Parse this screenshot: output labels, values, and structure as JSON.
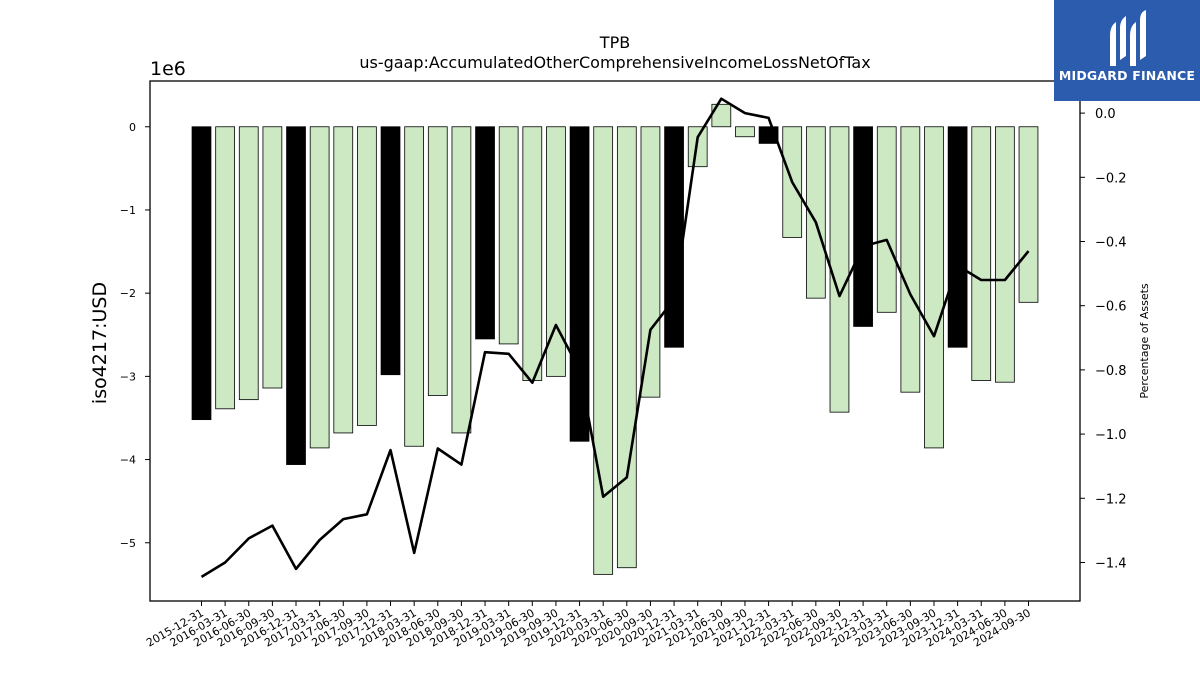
{
  "chart_data": {
    "type": "bar",
    "title": "TPB",
    "subtitle": "us-gaap:AccumulatedOtherComprehensiveIncomeLossNetOfTax",
    "ylabel": "iso4217:USD",
    "y2label": "Percentage of Assets",
    "y_offset_label": "1e6",
    "ylim": [
      -5.7,
      0.55
    ],
    "y2lim": [
      -1.52,
      0.1
    ],
    "yticks": [
      0,
      -1,
      -2,
      -3,
      -4,
      -5
    ],
    "y2ticks": [
      0.0,
      -0.2,
      -0.4,
      -0.6,
      -0.8,
      -1.0,
      -1.2,
      -1.4
    ],
    "y2tick_labels": [
      "0.0",
      "−0.2",
      "−0.4",
      "−0.6",
      "−0.8",
      "−1.0",
      "−1.2",
      "−1.4"
    ],
    "categories": [
      "2015-12-31",
      "2016-03-31",
      "2016-06-30",
      "2016-09-30",
      "2016-12-31",
      "2017-03-31",
      "2017-06-30",
      "2017-09-30",
      "2017-12-31",
      "2018-03-31",
      "2018-06-30",
      "2018-09-30",
      "2018-12-31",
      "2019-03-31",
      "2019-06-30",
      "2019-09-30",
      "2019-12-31",
      "2020-03-31",
      "2020-06-30",
      "2020-09-30",
      "2020-12-31",
      "2021-03-31",
      "2021-06-30",
      "2021-09-30",
      "2021-12-31",
      "2022-03-31",
      "2022-06-30",
      "2022-09-30",
      "2022-12-31",
      "2023-03-31",
      "2023-06-30",
      "2023-09-30",
      "2023-12-31",
      "2024-03-31",
      "2024-06-30",
      "2024-09-30"
    ],
    "series": [
      {
        "kind": "bar",
        "values": [
          -3.52,
          -3.39,
          -3.28,
          -3.14,
          -4.06,
          -3.86,
          -3.68,
          -3.59,
          -2.98,
          -3.84,
          -3.23,
          -3.68,
          -2.55,
          -2.61,
          -3.05,
          -3.0,
          -3.78,
          -5.38,
          -5.3,
          -3.25,
          -2.65,
          -0.48,
          0.27,
          -0.12,
          -0.2,
          -1.33,
          -2.06,
          -3.43,
          -2.4,
          -2.23,
          -3.19,
          -3.86,
          -2.65,
          -3.05,
          -3.07,
          -2.11
        ],
        "annual_color": "#000000",
        "quarterly_color": "#cce9c4",
        "annual_flags": [
          1,
          0,
          0,
          0,
          1,
          0,
          0,
          0,
          1,
          0,
          0,
          0,
          1,
          0,
          0,
          0,
          1,
          0,
          0,
          0,
          1,
          0,
          0,
          0,
          1,
          0,
          0,
          0,
          1,
          0,
          0,
          0,
          1,
          0,
          0,
          0
        ]
      },
      {
        "kind": "line",
        "color": "#000000",
        "axis": "right",
        "values": [
          -1.445,
          -1.4,
          -1.325,
          -1.285,
          -1.42,
          -1.33,
          -1.265,
          -1.25,
          -1.05,
          -1.37,
          -1.045,
          -1.095,
          -0.745,
          -0.75,
          -0.84,
          -0.66,
          -0.8,
          -1.195,
          -1.135,
          -0.675,
          -0.58,
          -0.075,
          0.045,
          0.0,
          -0.015,
          -0.215,
          -0.34,
          -0.57,
          -0.415,
          -0.395,
          -0.565,
          -0.695,
          -0.475,
          -0.52,
          -0.52,
          -0.43
        ]
      }
    ]
  },
  "logo": {
    "text": "MIDGARD FINANCE"
  }
}
